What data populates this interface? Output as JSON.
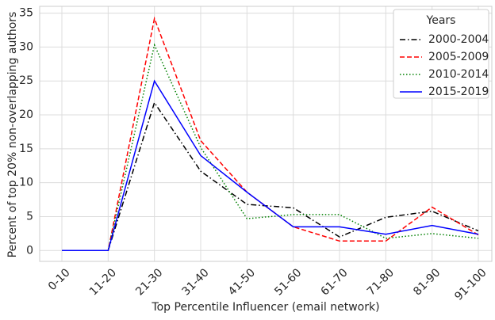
{
  "chart_data": {
    "type": "line",
    "xlabel": "Top Percentile Influencer (email network)",
    "ylabel": "Percent of top 20% non-overlapping authors",
    "categories": [
      "0-10",
      "11-20",
      "21-30",
      "31-40",
      "41-50",
      "51-60",
      "61-70",
      "71-80",
      "81-90",
      "91-100"
    ],
    "series": [
      {
        "name": "2000-2004",
        "color": "#000000",
        "linestyle": "dashdot",
        "values": [
          0,
          0,
          21.8,
          11.7,
          6.8,
          6.3,
          2.0,
          4.9,
          5.8,
          2.9
        ]
      },
      {
        "name": "2005-2009",
        "color": "#ff0000",
        "linestyle": "dashed",
        "values": [
          0,
          0,
          34.2,
          16.2,
          8.6,
          3.5,
          1.4,
          1.4,
          6.4,
          2.3
        ]
      },
      {
        "name": "2010-2014",
        "color": "#008000",
        "linestyle": "dotted",
        "values": [
          0,
          0,
          30.3,
          15.2,
          4.7,
          5.3,
          5.3,
          1.8,
          2.5,
          1.8
        ]
      },
      {
        "name": "2015-2019",
        "color": "#0000ff",
        "linestyle": "solid",
        "values": [
          0,
          0,
          25.0,
          14.0,
          8.6,
          3.5,
          3.5,
          2.4,
          3.7,
          2.4
        ]
      }
    ],
    "legend_title": "Years",
    "legend": "upper right",
    "ylim": [
      -1.6,
      36
    ],
    "yticks": [
      0,
      5,
      10,
      15,
      20,
      25,
      30,
      35
    ],
    "grid": true
  }
}
